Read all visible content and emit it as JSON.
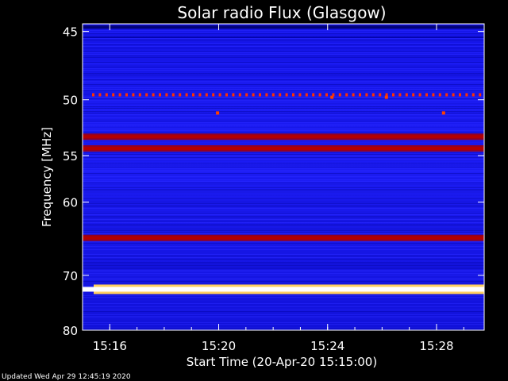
{
  "chart_data": {
    "type": "heatmap",
    "title": "Solar radio Flux (Glasgow)",
    "xlabel": "Start Time (20-Apr-20 15:15:00)",
    "ylabel": "Frequency [MHz]",
    "x_ticks": [
      "15:16",
      "15:20",
      "15:24",
      "15:28"
    ],
    "x_tick_minutes": [
      1,
      5,
      9,
      13
    ],
    "xlim_minutes": [
      0,
      14.75
    ],
    "y_ticks": [
      45,
      50,
      55,
      60,
      70,
      80
    ],
    "ylim": [
      44.5,
      80
    ],
    "y_scale": "reciprocal",
    "colormap": [
      "#000080",
      "#0000ff",
      "#3a3aff",
      "#c00000",
      "#ff2000",
      "#ffff80",
      "#ffffff"
    ],
    "background_level": "blue",
    "bands": [
      {
        "freq_mhz": 49.6,
        "level": "red dots"
      },
      {
        "freq_mhz": 53.2,
        "level": "red"
      },
      {
        "freq_mhz": 54.3,
        "level": "red"
      },
      {
        "freq_mhz": 64.5,
        "level": "red"
      },
      {
        "freq_mhz": 72.3,
        "level": "white"
      }
    ],
    "footer": "Updated Wed Apr 29 12:45:19 2020"
  }
}
